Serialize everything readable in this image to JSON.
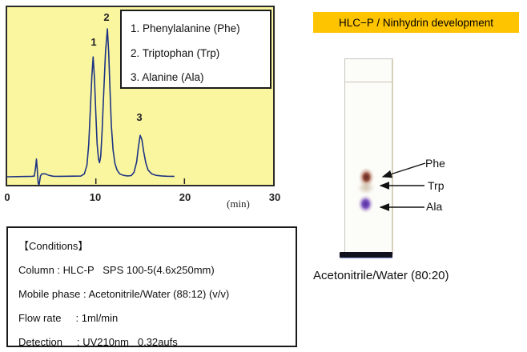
{
  "colors": {
    "plot_bg": "#FAF6A0",
    "trace": "#1E3482",
    "header_bg": "#FFC400"
  },
  "chart_data": {
    "type": "line",
    "title": "",
    "xlabel": "(min)",
    "ylabel": "",
    "xlim": [
      0,
      30
    ],
    "x_ticks": [
      0,
      10,
      20,
      30
    ],
    "grid": false,
    "legend_position": "top-right",
    "legend_entries": [
      "1. Phenylalanine (Phe)",
      "2. Triptophan (Trp)",
      "3. Alanine (Ala)"
    ],
    "peaks": [
      {
        "label": "1",
        "compound": "Phenylalanine (Phe)",
        "retention_min": 9.7,
        "rel_height_pct": 81
      },
      {
        "label": "2",
        "compound": "Triptophan (Trp)",
        "retention_min": 11.3,
        "rel_height_pct": 100
      },
      {
        "label": "3",
        "compound": "Alanine (Ala)",
        "retention_min": 15.0,
        "rel_height_pct": 28
      }
    ],
    "injection_disturbance_min": 3.3,
    "trace": [
      [
        0,
        0
      ],
      [
        2.8,
        0.3
      ],
      [
        3.05,
        0.5
      ],
      [
        3.2,
        6
      ],
      [
        3.3,
        12
      ],
      [
        3.38,
        6
      ],
      [
        3.5,
        -4.5
      ],
      [
        3.6,
        -5.5
      ],
      [
        3.75,
        0.5
      ],
      [
        3.9,
        2
      ],
      [
        4.3,
        2
      ],
      [
        4.7,
        1
      ],
      [
        5.2,
        0.4
      ],
      [
        6,
        0.3
      ],
      [
        8.3,
        0.5
      ],
      [
        8.7,
        2
      ],
      [
        9.0,
        8
      ],
      [
        9.2,
        22
      ],
      [
        9.4,
        48
      ],
      [
        9.55,
        68
      ],
      [
        9.7,
        81
      ],
      [
        9.85,
        66
      ],
      [
        10.0,
        42
      ],
      [
        10.15,
        22
      ],
      [
        10.3,
        12
      ],
      [
        10.42,
        9.5
      ],
      [
        10.55,
        14
      ],
      [
        10.7,
        30
      ],
      [
        10.9,
        58
      ],
      [
        11.1,
        85
      ],
      [
        11.3,
        100
      ],
      [
        11.45,
        84
      ],
      [
        11.6,
        58
      ],
      [
        11.75,
        35
      ],
      [
        11.95,
        18
      ],
      [
        12.15,
        9
      ],
      [
        12.4,
        4.5
      ],
      [
        12.7,
        2
      ],
      [
        13.1,
        1
      ],
      [
        13.6,
        0.6
      ],
      [
        14.0,
        0.8
      ],
      [
        14.3,
        3
      ],
      [
        14.6,
        10
      ],
      [
        14.8,
        20
      ],
      [
        15.0,
        28
      ],
      [
        15.2,
        25
      ],
      [
        15.4,
        17
      ],
      [
        15.65,
        9
      ],
      [
        15.9,
        4.5
      ],
      [
        16.3,
        2
      ],
      [
        16.8,
        1
      ],
      [
        17.4,
        0.6
      ],
      [
        18.0,
        0.4
      ],
      [
        18.8,
        0.3
      ]
    ]
  },
  "conditions": {
    "title": "【Conditions】",
    "rows": [
      "Column : HLC-P   SPS 100-5(4.6x250mm)",
      "Mobile phase : Acetonitrile/Water (88:12) (v/v)",
      "Flow rate     : 1ml/min",
      "Detection     : UV210nm   0.32aufs"
    ]
  },
  "tlc": {
    "header": "HLC−P / Ninhydrin development",
    "caption": "Acetonitrile/Water (80:20)",
    "spots": [
      {
        "label": "Phe",
        "color": "#6F3226"
      },
      {
        "label": "Trp",
        "color": "#AF9678"
      },
      {
        "label": "Ala",
        "color": "#5E35A8"
      }
    ]
  }
}
